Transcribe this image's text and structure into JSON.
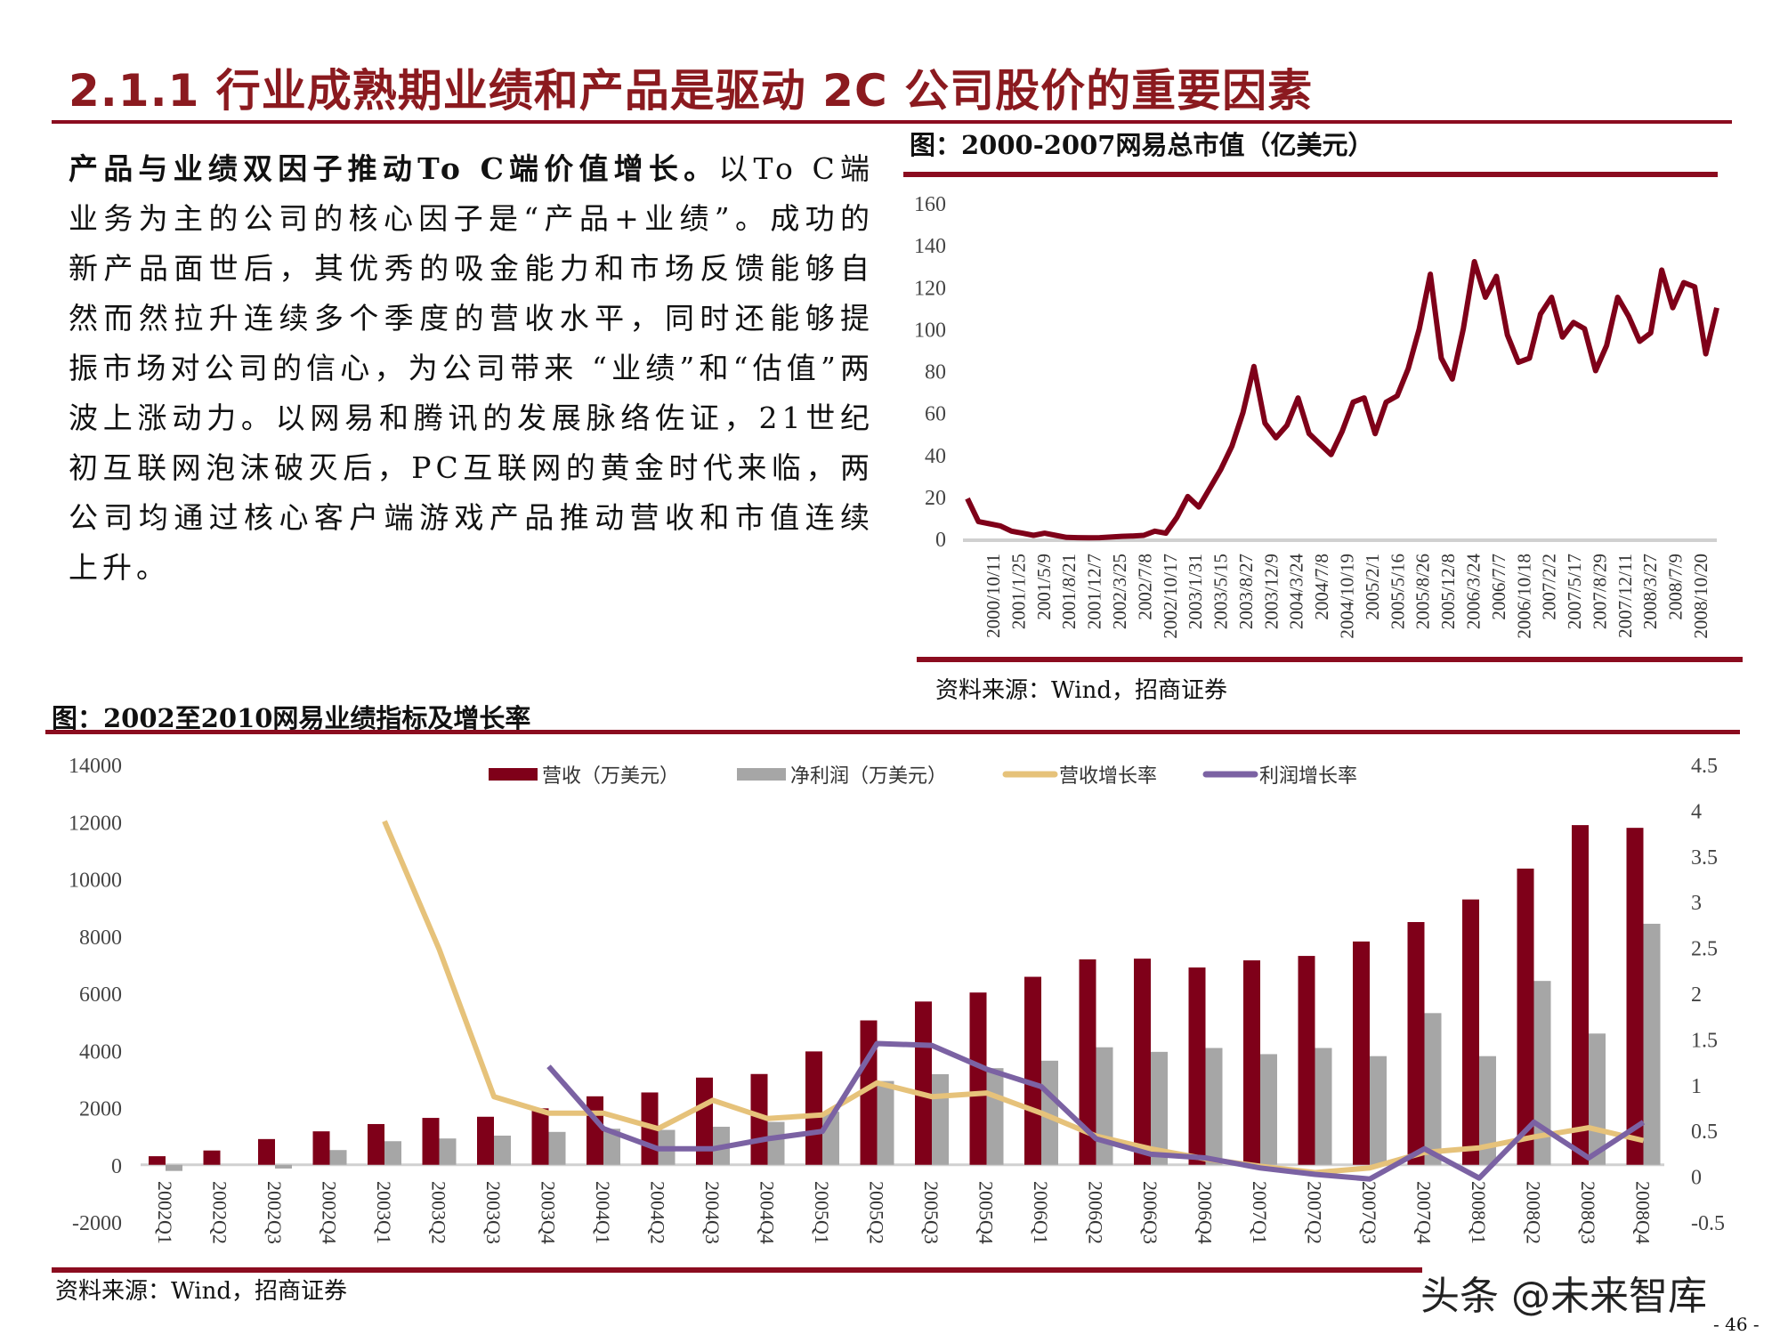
{
  "title": "2.1.1 行业成熟期业绩和产品是驱动 2C 公司股价的重要因素",
  "intro": {
    "lead": "产品与业绩双因子推动To C端价值增长。",
    "body": "以To C端业务为主的公司的核心因子是“产品+业绩”。成功的新产品面世后，其优秀的吸金能力和市场反馈能够自然而然拉升连续多个季度的营收水平，同时还能够提振市场对公司的信心，为公司带来 “业绩”和“估值”两波上涨动力。以网易和腾讯的发展脉络佐证，21世纪初互联网泡沫破灭后，PC互联网的黄金时代来临，两公司均通过核心客户端游戏产品推动营收和市值连续上升。"
  },
  "chart1_title": "图：2000-2007网易总市值（亿美元）",
  "chart1_source": "资料来源：Wind，招商证券",
  "chart2_title": "图：2002至2010网易业绩指标及增长率",
  "chart2_source": "资料来源：Wind，招商证券",
  "watermark": "头条 @未来智库",
  "page_number": "- 46 -",
  "colors": {
    "brand": "#8b0c1f",
    "revenue": "#7f0019",
    "profit": "#a6a6a6",
    "rev_growth": "#e6c27a",
    "profit_growth": "#7b62a3"
  },
  "chart_data": [
    {
      "type": "line",
      "title": "图：2000-2007网易总市值（亿美元）",
      "ylim": [
        0,
        160
      ],
      "yticks": [
        "0",
        "20",
        "40",
        "60",
        "80",
        "100",
        "120",
        "140",
        "160"
      ],
      "xticks": [
        "2000/10/11",
        "2001/1/25",
        "2001/5/9",
        "2001/8/21",
        "2001/12/7",
        "2002/3/25",
        "2002/7/8",
        "2002/10/17",
        "2003/1/31",
        "2003/5/15",
        "2003/8/27",
        "2003/12/9",
        "2004/3/24",
        "2004/7/8",
        "2004/10/19",
        "2005/2/1",
        "2005/5/16",
        "2005/8/26",
        "2005/12/8",
        "2006/3/24",
        "2006/7/7",
        "2006/10/18",
        "2007/2/2",
        "2007/5/17",
        "2007/8/29",
        "2007/12/11",
        "2008/3/27",
        "2008/7/9",
        "2008/10/20"
      ],
      "series": [
        {
          "values": [
            19,
            8,
            7,
            6,
            3.5,
            2.5,
            1.5,
            2.5,
            1.5,
            0.5,
            0.4,
            0.3,
            0.4,
            0.7,
            1,
            1.2,
            1.5,
            3.5,
            2.5,
            10,
            20,
            15,
            24,
            33,
            44,
            60,
            82,
            55,
            48,
            54,
            67,
            50,
            45,
            40,
            51,
            65,
            67,
            50,
            65,
            68,
            81,
            100,
            126,
            86,
            76,
            100,
            132,
            115,
            125,
            97,
            84,
            86,
            107,
            115,
            96,
            103,
            100,
            80,
            92,
            115,
            106,
            94,
            98,
            128,
            110,
            122,
            120,
            88,
            110
          ]
        }
      ],
      "grid": false
    },
    {
      "type": "bar+line",
      "title": "图：2002至2010网易业绩指标及增长率",
      "categories": [
        "2002Q1",
        "2002Q2",
        "2002Q3",
        "2002Q4",
        "2003Q1",
        "2003Q2",
        "2003Q3",
        "2003Q4",
        "2004Q1",
        "2004Q2",
        "2004Q3",
        "2004Q4",
        "2005Q1",
        "2005Q2",
        "2005Q3",
        "2005Q4",
        "2006Q1",
        "2006Q2",
        "2006Q3",
        "2006Q4",
        "2007Q1",
        "2007Q2",
        "2007Q3",
        "2007Q4",
        "2008Q1",
        "2008Q2",
        "2008Q3",
        "2008Q4"
      ],
      "ylim_left": [
        -2000,
        14000
      ],
      "yticks_left": [
        "-2000",
        "0",
        "2000",
        "4000",
        "6000",
        "8000",
        "10000",
        "12000",
        "14000"
      ],
      "ylim_right": [
        -0.5,
        4.5
      ],
      "yticks_right": [
        "-0.5",
        "0",
        "0.5",
        "1",
        "1.5",
        "2",
        "2.5",
        "3",
        "3.5",
        "4",
        "4.5"
      ],
      "legend_position": "top",
      "series": [
        {
          "name": "营收（万美元）",
          "kind": "bar",
          "axis": "left",
          "values": [
            300,
            500,
            900,
            1170,
            1425,
            1640,
            1680,
            1975,
            2395,
            2530,
            3050,
            3175,
            3965,
            5050,
            5710,
            6025,
            6575,
            7185,
            7210,
            6900,
            7150,
            7305,
            7810,
            8490,
            9280,
            10360,
            11880,
            11785
          ]
        },
        {
          "name": "净利润（万美元）",
          "kind": "bar",
          "axis": "left",
          "values": [
            -215,
            0,
            -130,
            515,
            825,
            920,
            1020,
            1150,
            1260,
            1220,
            1330,
            1500,
            1855,
            2930,
            3170,
            3380,
            3640,
            4110,
            3950,
            4085,
            3870,
            4085,
            3800,
            5305,
            3800,
            6430,
            4590,
            8430
          ]
        },
        {
          "name": "营收增长率",
          "kind": "line",
          "axis": "right",
          "values": [
            null,
            null,
            null,
            null,
            3.88,
            2.48,
            0.87,
            0.69,
            0.69,
            0.52,
            0.83,
            0.63,
            0.67,
            1.02,
            0.87,
            0.91,
            0.69,
            0.44,
            0.3,
            0.19,
            0.11,
            0.04,
            0.09,
            0.26,
            0.31,
            0.43,
            0.53,
            0.39
          ]
        },
        {
          "name": "利润增长率",
          "kind": "line",
          "axis": "right",
          "values": [
            null,
            null,
            null,
            null,
            null,
            null,
            null,
            1.2,
            0.52,
            0.3,
            0.3,
            0.41,
            0.49,
            1.45,
            1.43,
            1.17,
            0.98,
            0.41,
            0.24,
            0.2,
            0.09,
            0.02,
            -0.03,
            0.3,
            -0.02,
            0.59,
            0.2,
            0.59
          ]
        }
      ]
    }
  ]
}
